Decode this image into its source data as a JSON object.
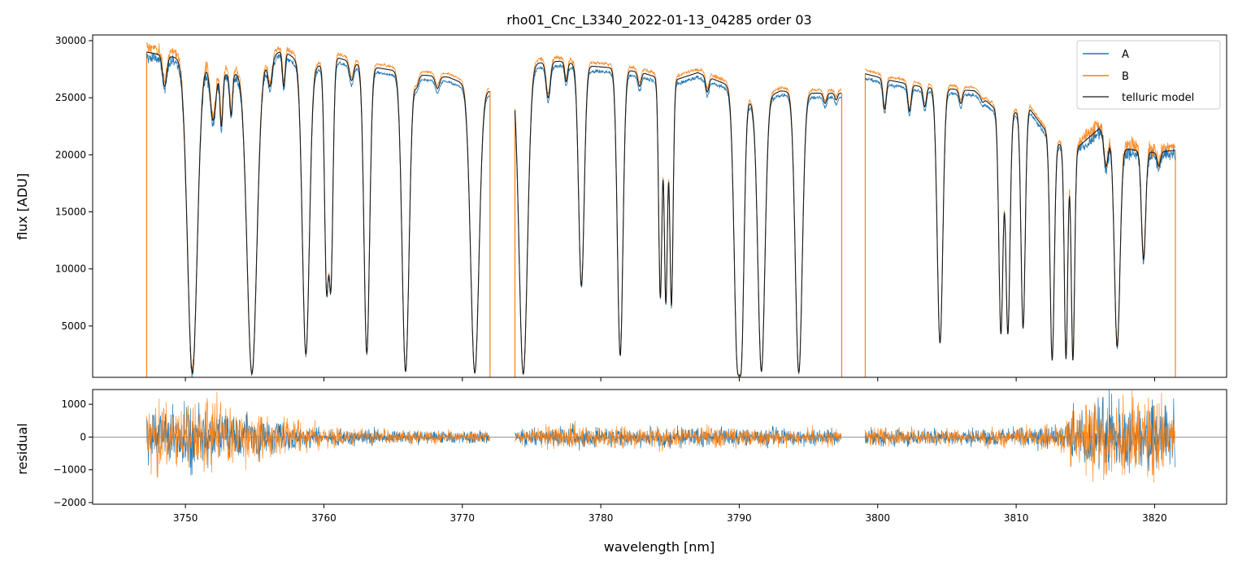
{
  "chart_data": [
    {
      "panel": "flux",
      "type": "line",
      "title": "rho01_Cnc_L3340_2022-01-13_04285  order 03",
      "xlabel": "",
      "ylabel": "flux [ADU]",
      "xlim": [
        3743.3,
        3825.2
      ],
      "ylim": [
        500,
        30500
      ],
      "yticks": [
        5000,
        10000,
        15000,
        20000,
        25000,
        30000
      ],
      "ytick_labels": [
        "5000",
        "10000",
        "15000",
        "20000",
        "25000",
        "30000"
      ],
      "xticks": [
        3750,
        3760,
        3770,
        3780,
        3790,
        3800,
        3810,
        3820
      ],
      "legend": {
        "placement": "top-right",
        "entries": [
          "A",
          "B",
          "telluric model"
        ]
      },
      "grid": false,
      "series": [
        {
          "name": "A",
          "color": "#1f77b4"
        },
        {
          "name": "B",
          "color": "#ff7f0e"
        },
        {
          "name": "telluric model",
          "color": "#404040"
        }
      ],
      "segments": [
        [
          3747.2,
          3772.0
        ],
        [
          3773.8,
          3797.4
        ],
        [
          3799.1,
          3821.5
        ]
      ],
      "continuum": [
        [
          3747.2,
          29000
        ],
        [
          3749.0,
          28600
        ],
        [
          3751.0,
          28200
        ],
        [
          3753.0,
          27000
        ],
        [
          3755.0,
          27500
        ],
        [
          3757.0,
          29200
        ],
        [
          3759.0,
          27500
        ],
        [
          3761.0,
          28500
        ],
        [
          3763.0,
          27800
        ],
        [
          3765.0,
          27400
        ],
        [
          3767.0,
          27000
        ],
        [
          3769.0,
          26800
        ],
        [
          3771.0,
          25800
        ],
        [
          3772.0,
          25600
        ],
        [
          3773.8,
          27500
        ],
        [
          3775.0,
          28000
        ],
        [
          3777.0,
          28200
        ],
        [
          3779.0,
          27800
        ],
        [
          3781.0,
          27600
        ],
        [
          3783.0,
          27200
        ],
        [
          3785.0,
          26400
        ],
        [
          3787.0,
          27200
        ],
        [
          3789.0,
          26200
        ],
        [
          3791.0,
          24500
        ],
        [
          3793.0,
          25600
        ],
        [
          3795.0,
          25400
        ],
        [
          3797.4,
          25400
        ],
        [
          3799.1,
          27100
        ],
        [
          3801.0,
          26500
        ],
        [
          3803.0,
          26000
        ],
        [
          3805.0,
          25800
        ],
        [
          3807.0,
          25600
        ],
        [
          3809.0,
          23500
        ],
        [
          3811.0,
          24000
        ],
        [
          3812.5,
          21500
        ],
        [
          3814.0,
          20200
        ],
        [
          3816.0,
          22300
        ],
        [
          3818.0,
          20500
        ],
        [
          3820.0,
          20200
        ],
        [
          3821.5,
          20400
        ]
      ],
      "absorption_lines": [
        [
          3750.5,
          900,
          0.35
        ],
        [
          3754.8,
          800,
          0.35
        ],
        [
          3758.7,
          2500,
          0.25
        ],
        [
          3760.2,
          8500,
          0.15
        ],
        [
          3760.5,
          8800,
          0.15
        ],
        [
          3763.1,
          2600,
          0.2
        ],
        [
          3765.9,
          1000,
          0.25
        ],
        [
          3770.9,
          900,
          0.3
        ],
        [
          3774.4,
          800,
          0.3
        ],
        [
          3778.6,
          8500,
          0.2
        ],
        [
          3781.4,
          2400,
          0.2
        ],
        [
          3784.3,
          7500,
          0.12
        ],
        [
          3784.7,
          7000,
          0.12
        ],
        [
          3785.1,
          6800,
          0.12
        ],
        [
          3789.9,
          1800,
          0.25
        ],
        [
          3790.1,
          2000,
          0.2
        ],
        [
          3791.6,
          1000,
          0.25
        ],
        [
          3794.3,
          900,
          0.25
        ],
        [
          3804.5,
          3500,
          0.2
        ],
        [
          3808.9,
          4300,
          0.15
        ],
        [
          3809.4,
          4300,
          0.15
        ],
        [
          3810.5,
          4800,
          0.15
        ],
        [
          3812.6,
          2000,
          0.15
        ],
        [
          3813.6,
          2100,
          0.12
        ],
        [
          3814.1,
          2000,
          0.12
        ],
        [
          3817.3,
          3200,
          0.2
        ],
        [
          3819.2,
          10800,
          0.15
        ]
      ],
      "shallow_lines": [
        [
          3748.5,
          26000,
          0.15
        ],
        [
          3752.0,
          23000,
          0.2
        ],
        [
          3752.6,
          22500,
          0.1
        ],
        [
          3753.3,
          23500,
          0.1
        ],
        [
          3756.1,
          26000,
          0.15
        ],
        [
          3757.1,
          26000,
          0.1
        ],
        [
          3762.0,
          26500,
          0.15
        ],
        [
          3766.7,
          26000,
          0.15
        ],
        [
          3768.2,
          25800,
          0.15
        ],
        [
          3776.2,
          25000,
          0.15
        ],
        [
          3777.5,
          26400,
          0.1
        ],
        [
          3782.8,
          26000,
          0.12
        ],
        [
          3787.7,
          25500,
          0.12
        ],
        [
          3796.2,
          24500,
          0.12
        ],
        [
          3797.0,
          24800,
          0.1
        ],
        [
          3800.5,
          24000,
          0.12
        ],
        [
          3802.3,
          23800,
          0.12
        ],
        [
          3803.4,
          24200,
          0.12
        ],
        [
          3806.0,
          24500,
          0.12
        ],
        [
          3807.6,
          24600,
          0.12
        ],
        [
          3816.5,
          19000,
          0.15
        ],
        [
          3820.3,
          19000,
          0.12
        ]
      ]
    },
    {
      "panel": "residual",
      "type": "line",
      "title": "",
      "xlabel": "wavelength [nm]",
      "ylabel": "residual",
      "xlim": [
        3743.3,
        3825.2
      ],
      "ylim": [
        -2050,
        1450
      ],
      "yticks": [
        -2000,
        -1000,
        0,
        1000
      ],
      "ytick_labels": [
        "−2000",
        "−1000",
        "0",
        "1000"
      ],
      "xticks": [
        3750,
        3760,
        3770,
        3780,
        3790,
        3800,
        3810,
        3820
      ],
      "xtick_labels": [
        "3750",
        "3760",
        "3770",
        "3780",
        "3790",
        "3800",
        "3810",
        "3820"
      ],
      "zero_line": 0,
      "series": [
        {
          "name": "A",
          "color": "#1f77b4"
        },
        {
          "name": "B",
          "color": "#ff7f0e"
        }
      ],
      "noise_envelope": [
        [
          3747.2,
          1200
        ],
        [
          3749.0,
          900
        ],
        [
          3751.0,
          1100
        ],
        [
          3753.0,
          900
        ],
        [
          3755.0,
          700
        ],
        [
          3757.0,
          600
        ],
        [
          3760.0,
          280
        ],
        [
          3765.0,
          230
        ],
        [
          3772.0,
          200
        ],
        [
          3773.8,
          200
        ],
        [
          3777.0,
          350
        ],
        [
          3783.0,
          350
        ],
        [
          3790.0,
          300
        ],
        [
          3797.4,
          250
        ],
        [
          3799.1,
          300
        ],
        [
          3805.0,
          250
        ],
        [
          3810.0,
          300
        ],
        [
          3813.0,
          400
        ],
        [
          3815.0,
          1200
        ],
        [
          3818.0,
          1300
        ],
        [
          3821.5,
          900
        ]
      ]
    }
  ]
}
